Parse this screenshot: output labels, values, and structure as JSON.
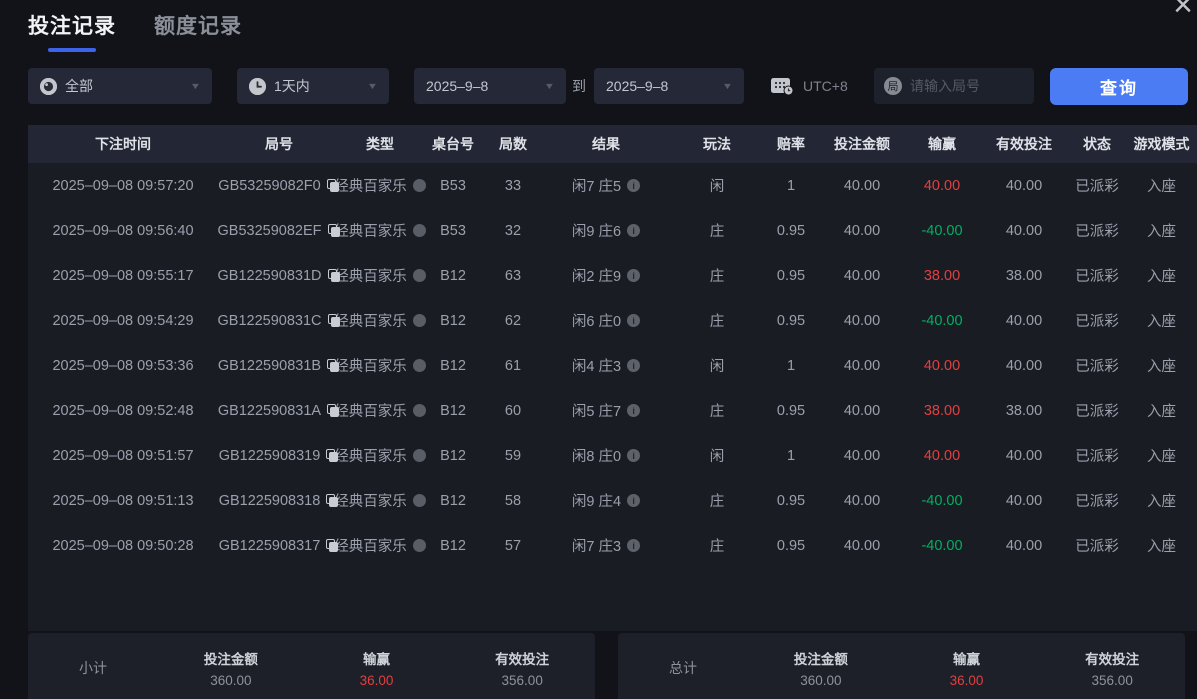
{
  "window": {
    "close_icon": "×"
  },
  "icons": {
    "caret": "▼",
    "info": "i",
    "search_badge": "局"
  },
  "colors": {
    "accent": "#4b7cf3",
    "tab_underline": "#3d64e8",
    "win_red": "#e04040",
    "loss_green": "#00b05f"
  },
  "tabs": [
    {
      "label": "投注记录",
      "active": true
    },
    {
      "label": "额度记录",
      "active": false
    }
  ],
  "filters": {
    "game_type_value": "全部",
    "time_range_value": "1天内",
    "date_from": "2025–9–8",
    "to_label": "到",
    "date_to": "2025–9–8",
    "timezone_label": "UTC+8",
    "search_placeholder": "请输入局号",
    "query_button_label": "查询"
  },
  "table": {
    "columns": [
      "下注时间",
      "局号",
      "类型",
      "桌台号",
      "局数",
      "结果",
      "玩法",
      "赔率",
      "投注金额",
      "输赢",
      "有效投注",
      "状态",
      "游戏模式"
    ],
    "rows": [
      {
        "time": "2025–09–08 09:57:20",
        "round_id": "GB53259082F0",
        "type": "经典百家乐",
        "table_no": "B53",
        "round_no": "33",
        "result": "闲7 庄5",
        "play": "闲",
        "odds": "1",
        "amount": "40.00",
        "win": "40.00",
        "valid": "40.00",
        "status": "已派彩",
        "mode": "入座"
      },
      {
        "time": "2025–09–08 09:56:40",
        "round_id": "GB53259082EF",
        "type": "经典百家乐",
        "table_no": "B53",
        "round_no": "32",
        "result": "闲9 庄6",
        "play": "庄",
        "odds": "0.95",
        "amount": "40.00",
        "win": "-40.00",
        "valid": "40.00",
        "status": "已派彩",
        "mode": "入座"
      },
      {
        "time": "2025–09–08 09:55:17",
        "round_id": "GB122590831D",
        "type": "经典百家乐",
        "table_no": "B12",
        "round_no": "63",
        "result": "闲2 庄9",
        "play": "庄",
        "odds": "0.95",
        "amount": "40.00",
        "win": "38.00",
        "valid": "38.00",
        "status": "已派彩",
        "mode": "入座"
      },
      {
        "time": "2025–09–08 09:54:29",
        "round_id": "GB122590831C",
        "type": "经典百家乐",
        "table_no": "B12",
        "round_no": "62",
        "result": "闲6 庄0",
        "play": "庄",
        "odds": "0.95",
        "amount": "40.00",
        "win": "-40.00",
        "valid": "40.00",
        "status": "已派彩",
        "mode": "入座"
      },
      {
        "time": "2025–09–08 09:53:36",
        "round_id": "GB122590831B",
        "type": "经典百家乐",
        "table_no": "B12",
        "round_no": "61",
        "result": "闲4 庄3",
        "play": "闲",
        "odds": "1",
        "amount": "40.00",
        "win": "40.00",
        "valid": "40.00",
        "status": "已派彩",
        "mode": "入座"
      },
      {
        "time": "2025–09–08 09:52:48",
        "round_id": "GB122590831A",
        "type": "经典百家乐",
        "table_no": "B12",
        "round_no": "60",
        "result": "闲5 庄7",
        "play": "庄",
        "odds": "0.95",
        "amount": "40.00",
        "win": "38.00",
        "valid": "38.00",
        "status": "已派彩",
        "mode": "入座"
      },
      {
        "time": "2025–09–08 09:51:57",
        "round_id": "GB1225908319",
        "type": "经典百家乐",
        "table_no": "B12",
        "round_no": "59",
        "result": "闲8 庄0",
        "play": "闲",
        "odds": "1",
        "amount": "40.00",
        "win": "40.00",
        "valid": "40.00",
        "status": "已派彩",
        "mode": "入座"
      },
      {
        "time": "2025–09–08 09:51:13",
        "round_id": "GB1225908318",
        "type": "经典百家乐",
        "table_no": "B12",
        "round_no": "58",
        "result": "闲9 庄4",
        "play": "庄",
        "odds": "0.95",
        "amount": "40.00",
        "win": "-40.00",
        "valid": "40.00",
        "status": "已派彩",
        "mode": "入座"
      },
      {
        "time": "2025–09–08 09:50:28",
        "round_id": "GB1225908317",
        "type": "经典百家乐",
        "table_no": "B12",
        "round_no": "57",
        "result": "闲7 庄3",
        "play": "庄",
        "odds": "0.95",
        "amount": "40.00",
        "win": "-40.00",
        "valid": "40.00",
        "status": "已派彩",
        "mode": "入座"
      }
    ]
  },
  "summary": {
    "subtotal": {
      "label": "小计",
      "bet_label": "投注金额",
      "bet": "360.00",
      "win_label": "输赢",
      "win": "36.00",
      "valid_label": "有效投注",
      "valid": "356.00"
    },
    "total": {
      "label": "总计",
      "bet_label": "投注金额",
      "bet": "360.00",
      "win_label": "输赢",
      "win": "36.00",
      "valid_label": "有效投注",
      "valid": "356.00"
    }
  }
}
